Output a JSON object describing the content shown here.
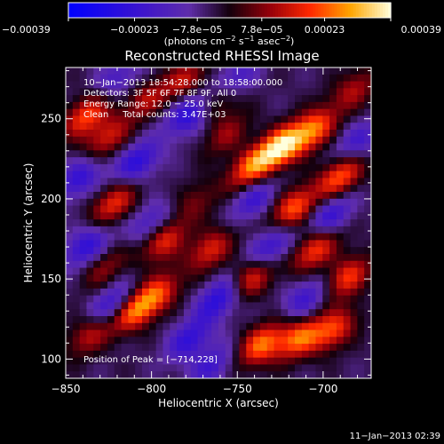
{
  "chart_data": {
    "type": "heatmap",
    "title": "Reconstructed RHESSI Image",
    "xlabel": "Heliocentric X (arcsec)",
    "ylabel": "Heliocentric Y (arcsec)",
    "xlim": [
      -850,
      -672
    ],
    "ylim": [
      88,
      282
    ],
    "x_ticks": [
      -850,
      -800,
      -750,
      -700
    ],
    "x_tick_labels": [
      "−850",
      "−800",
      "−750",
      "−700"
    ],
    "y_ticks": [
      100,
      150,
      200,
      250
    ],
    "y_tick_labels": [
      "100",
      "150",
      "200",
      "250"
    ],
    "colorbar": {
      "min": -0.00039,
      "max": 0.00039,
      "ticks": [
        -0.00039,
        -0.00023,
        -7.8e-05,
        7.8e-05,
        0.00023,
        0.00039
      ],
      "tick_labels": [
        "−0.00039",
        "−0.00023",
        "−7.8e−05",
        "7.8e−05",
        "0.00023",
        "0.00039"
      ],
      "unit_label_parts": [
        "(photons cm",
        "−2",
        " s",
        "−1",
        " asec",
        "−2",
        ")"
      ]
    },
    "info_lines": [
      "10−Jan−2013 18:54:28.000 to 18:58:00.000",
      "Detectors: 3F 5F 6F 7F 8F 9F, All 0",
      "Energy Range: 12.0 − 25.0 keV",
      "Clean     Total counts: 3.47E+03"
    ],
    "peak_label": "Position of Peak = [−714,228]",
    "timestamp": "11−Jan−2013 02:39",
    "bright_sources": [
      {
        "x": -725,
        "y": 232,
        "value": 1.0
      },
      {
        "x": -706,
        "y": 243,
        "value": 0.75
      },
      {
        "x": -742,
        "y": 219,
        "value": 0.7
      },
      {
        "x": -717,
        "y": 194,
        "value": 0.72
      },
      {
        "x": -690,
        "y": 214,
        "value": 0.72
      },
      {
        "x": -705,
        "y": 168,
        "value": 0.65
      },
      {
        "x": -686,
        "y": 151,
        "value": 0.62
      },
      {
        "x": -742,
        "y": 150,
        "value": 0.58
      },
      {
        "x": -766,
        "y": 168,
        "value": 0.55
      },
      {
        "x": -736,
        "y": 109,
        "value": 0.74
      },
      {
        "x": -714,
        "y": 113,
        "value": 0.7
      },
      {
        "x": -694,
        "y": 118,
        "value": 0.62
      },
      {
        "x": -810,
        "y": 130,
        "value": 0.72
      },
      {
        "x": -796,
        "y": 141,
        "value": 0.56
      },
      {
        "x": -793,
        "y": 174,
        "value": 0.6
      },
      {
        "x": -822,
        "y": 197,
        "value": 0.58
      },
      {
        "x": -838,
        "y": 252,
        "value": 0.65
      },
      {
        "x": -826,
        "y": 238,
        "value": 0.5
      },
      {
        "x": -803,
        "y": 262,
        "value": 0.4
      },
      {
        "x": -780,
        "y": 274,
        "value": 0.45
      },
      {
        "x": -760,
        "y": 262,
        "value": 0.4
      },
      {
        "x": -836,
        "y": 115,
        "value": 0.45
      },
      {
        "x": -828,
        "y": 157,
        "value": 0.35
      },
      {
        "x": -682,
        "y": 268,
        "value": 0.42
      },
      {
        "x": -756,
        "y": 240,
        "value": 0.35
      },
      {
        "x": -774,
        "y": 198,
        "value": 0.3
      }
    ],
    "dark_sources": [
      {
        "x": -778,
        "y": 253,
        "value": -0.6
      },
      {
        "x": -808,
        "y": 223,
        "value": -0.55
      },
      {
        "x": -842,
        "y": 213,
        "value": -0.5
      },
      {
        "x": -838,
        "y": 170,
        "value": -0.55
      },
      {
        "x": -823,
        "y": 134,
        "value": -0.5
      },
      {
        "x": -760,
        "y": 138,
        "value": -0.6
      },
      {
        "x": -778,
        "y": 112,
        "value": -0.5
      },
      {
        "x": -730,
        "y": 170,
        "value": -0.5
      },
      {
        "x": -740,
        "y": 200,
        "value": -0.45
      },
      {
        "x": -696,
        "y": 190,
        "value": -0.5
      },
      {
        "x": -710,
        "y": 138,
        "value": -0.45
      },
      {
        "x": -800,
        "y": 185,
        "value": -0.4
      },
      {
        "x": -752,
        "y": 274,
        "value": -0.45
      },
      {
        "x": -680,
        "y": 235,
        "value": -0.4
      },
      {
        "x": -820,
        "y": 275,
        "value": -0.35
      },
      {
        "x": -765,
        "y": 96,
        "value": -0.4
      }
    ]
  }
}
